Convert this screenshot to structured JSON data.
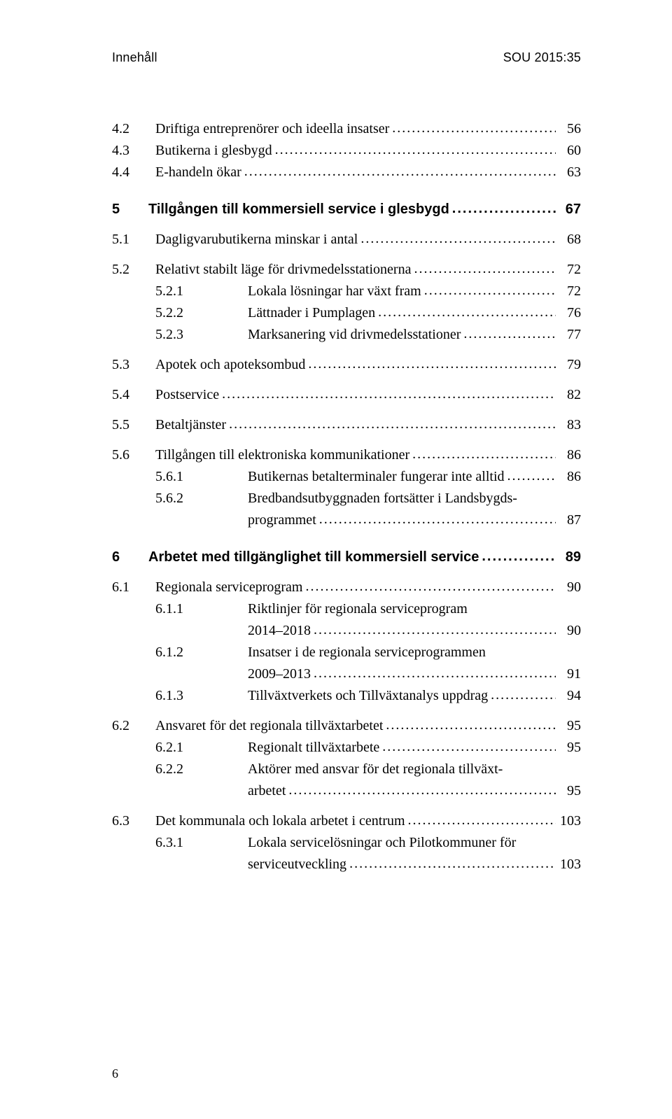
{
  "header": {
    "left": "Innehåll",
    "right": "SOU 2015:35"
  },
  "toc": [
    {
      "type": "group",
      "items": [
        {
          "level": 2,
          "num": "4.2",
          "title": "Driftiga entreprenörer och ideella insatser",
          "page": "56"
        },
        {
          "level": 2,
          "num": "4.3",
          "title": "Butikerna i glesbygd",
          "page": "60"
        },
        {
          "level": 2,
          "num": "4.4",
          "title": "E-handeln ökar",
          "page": "63"
        }
      ]
    },
    {
      "type": "chapter",
      "num": "5",
      "title": "Tillgången till kommersiell service i glesbygd",
      "page": "67"
    },
    {
      "type": "group",
      "items": [
        {
          "level": 2,
          "num": "5.1",
          "title": "Dagligvarubutikerna minskar i antal",
          "page": "68"
        }
      ]
    },
    {
      "type": "group",
      "items": [
        {
          "level": 2,
          "num": "5.2",
          "title": "Relativt stabilt läge för drivmedelsstationerna",
          "page": "72"
        },
        {
          "level": 3,
          "num": "5.2.1",
          "title": "Lokala lösningar har växt fram",
          "page": "72"
        },
        {
          "level": 3,
          "num": "5.2.2",
          "title": "Lättnader i Pumplagen",
          "page": "76"
        },
        {
          "level": 3,
          "num": "5.2.3",
          "title": "Marksanering vid drivmedelsstationer",
          "page": "77"
        }
      ]
    },
    {
      "type": "group",
      "items": [
        {
          "level": 2,
          "num": "5.3",
          "title": "Apotek och apoteksombud",
          "page": "79"
        }
      ]
    },
    {
      "type": "group",
      "items": [
        {
          "level": 2,
          "num": "5.4",
          "title": "Postservice",
          "page": "82"
        }
      ]
    },
    {
      "type": "group",
      "items": [
        {
          "level": 2,
          "num": "5.5",
          "title": "Betaltjänster",
          "page": "83"
        }
      ]
    },
    {
      "type": "group",
      "items": [
        {
          "level": 2,
          "num": "5.6",
          "title": "Tillgången till elektroniska kommunikationer",
          "page": "86"
        },
        {
          "level": 3,
          "num": "5.6.1",
          "title": "Butikernas betalterminaler fungerar inte alltid",
          "page": "86"
        },
        {
          "level": 3,
          "num": "5.6.2",
          "title_lines": [
            "Bredbandsutbyggnaden fortsätter i Landsbygds-",
            "programmet"
          ],
          "page": "87"
        }
      ]
    },
    {
      "type": "chapter",
      "num": "6",
      "title": "Arbetet med tillgänglighet till kommersiell service",
      "page": "89"
    },
    {
      "type": "group",
      "items": [
        {
          "level": 2,
          "num": "6.1",
          "title": "Regionala serviceprogram",
          "page": "90"
        },
        {
          "level": 3,
          "num": "6.1.1",
          "title_lines": [
            "Riktlinjer för regionala serviceprogram",
            "2014–2018"
          ],
          "page": "90"
        },
        {
          "level": 3,
          "num": "6.1.2",
          "title_lines": [
            "Insatser i de regionala serviceprogrammen",
            "2009–2013"
          ],
          "page": "91"
        },
        {
          "level": 3,
          "num": "6.1.3",
          "title": "Tillväxtverkets och Tillväxtanalys uppdrag",
          "page": "94"
        }
      ]
    },
    {
      "type": "group",
      "items": [
        {
          "level": 2,
          "num": "6.2",
          "title": "Ansvaret för det regionala tillväxtarbetet",
          "page": "95"
        },
        {
          "level": 3,
          "num": "6.2.1",
          "title": "Regionalt tillväxtarbete",
          "page": "95"
        },
        {
          "level": 3,
          "num": "6.2.2",
          "title_lines": [
            "Aktörer med ansvar för det regionala tillväxt-",
            "arbetet"
          ],
          "page": "95"
        }
      ]
    },
    {
      "type": "group",
      "items": [
        {
          "level": 2,
          "num": "6.3",
          "title": "Det kommunala och lokala arbetet i centrum",
          "page": "103"
        },
        {
          "level": 3,
          "num": "6.3.1",
          "title_lines": [
            "Lokala servicelösningar och Pilotkommuner för",
            "serviceutveckling"
          ],
          "page": "103"
        }
      ]
    }
  ],
  "page_number": "6"
}
